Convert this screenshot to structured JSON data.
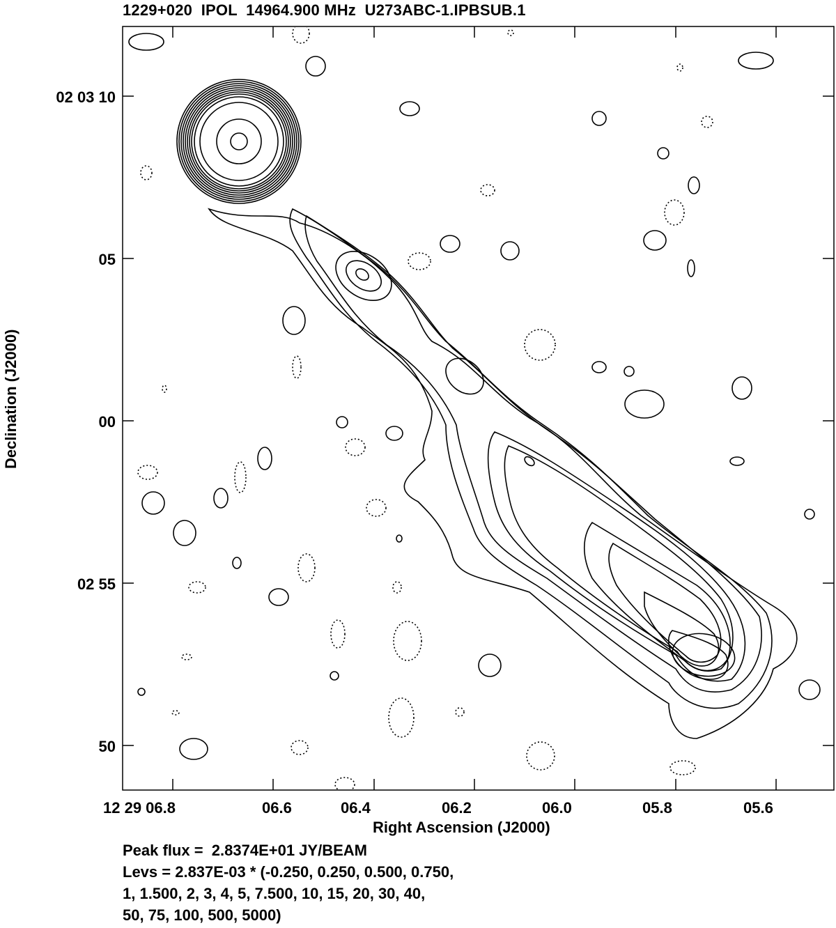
{
  "chart_data": {
    "type": "contour",
    "title": "1229+020  IPOL  14964.900 MHz  U273ABC-1.IPBSUB.1",
    "xlabel": "Right Ascension (J2000)",
    "ylabel": "Declination (J2000)",
    "x_ticks": [
      "12 29 06.8",
      "06.6",
      "06.4",
      "06.2",
      "06.0",
      "05.8",
      "05.6"
    ],
    "y_ticks": [
      "02 03 10",
      "05",
      "00",
      "02 55",
      "50"
    ],
    "x_range_seconds": [
      6.9,
      5.48
    ],
    "y_range_arcsec": [
      63.2,
      49.2
    ],
    "peak_flux_label": "Peak flux =  2.8374E+01 JY/BEAM",
    "levels_label_lines": [
      "Levs = 2.837E-03 * (-0.250, 0.250, 0.500, 0.750,",
      "1, 1.500, 2, 3, 4, 5, 7.500, 10, 15, 20, 30, 40,",
      "50, 75, 100, 500, 5000)"
    ],
    "base_level_jy_per_beam": 0.002837,
    "level_multipliers": [
      -0.25,
      0.25,
      0.5,
      0.75,
      1,
      1.5,
      2,
      3,
      4,
      5,
      7.5,
      10,
      15,
      20,
      30,
      40,
      50,
      75,
      100,
      500,
      5000
    ],
    "peak_flux_jy_per_beam": 28.374
  }
}
